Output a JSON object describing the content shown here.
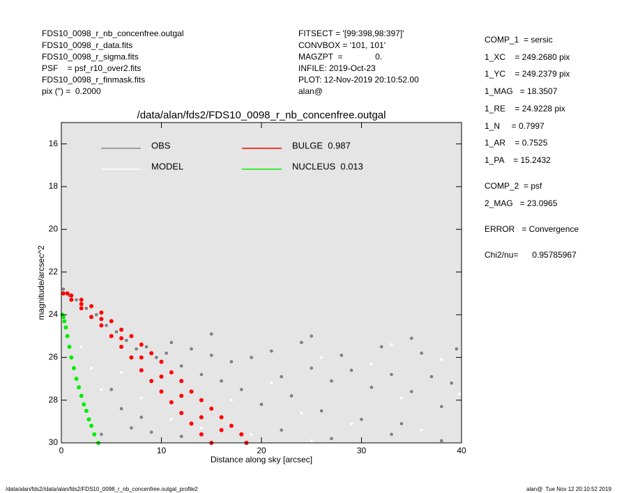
{
  "info": {
    "left": [
      "FDS10_0098_r_nb_concenfree.outgal",
      "FDS10_0098_r_data.fits",
      "FDS10_0098_r_sigma.fits",
      "PSF    = psf_r10_over2.fits",
      "FDS10_0098_r_finmask.fits",
      "pix (\") =  0.2000"
    ],
    "middle": [
      "FITSECT = '[99:398,98:397]'",
      "CONVBOX = '101, 101'",
      "MAGZPT  =              0.",
      "INFILE: 2019-Oct-23",
      "PLOT: 12-Nov-2019 20:10:52.00",
      "alan@"
    ],
    "right": [
      "COMP_1  = sersic",
      "1_XC    = 249.2680 pix",
      "1_YC    = 249.2379 pix",
      "1_MAG   = 18.3507",
      "1_RE    = 24.9228 pix",
      "1_N     = 0.7997",
      "1_AR    = 0.7525",
      "1_PA    = 15.2432",
      "COMP_2  = psf",
      "2_MAG   = 23.0965",
      "ERROR   = Convergence",
      "Chi2/nu=      0.95785967"
    ],
    "footer_left": "/data/alan/fds2//data/alan/fds2/FDS10_0098_r_nb_concenfree.outgal_profile2",
    "footer_right": "alan@  Tue Nov 12 20:10:52 2019"
  },
  "chart_data": {
    "type": "scatter",
    "title": "/data/alan/fds2/FDS10_0098_r_nb_concenfree.outgal",
    "xlabel": "Distance along sky [arcsec]",
    "ylabel": "magnitude/arcsec^2",
    "xlim": [
      0,
      40
    ],
    "xticks": [
      0,
      10,
      20,
      30,
      40
    ],
    "ylim": [
      30,
      15
    ],
    "yticks": [
      16,
      18,
      20,
      22,
      24,
      26,
      28,
      30
    ],
    "background": "#e5e5e5",
    "series": [
      {
        "name": "OBS",
        "color": "#888888",
        "x": [
          0.2,
          0.8,
          1.5,
          2.5,
          3.5,
          4.5,
          5.5,
          6.5,
          7.5,
          8.5,
          9.5,
          10.5,
          11,
          12,
          13,
          14,
          15,
          16,
          17,
          18,
          19,
          20,
          21,
          22,
          23,
          24,
          25,
          26,
          27,
          28,
          29,
          30,
          31,
          32,
          33,
          34,
          35,
          36,
          37,
          38,
          39,
          39.5,
          5,
          6,
          7,
          4,
          8,
          9,
          12,
          22,
          27,
          33,
          38,
          15,
          25,
          35
        ],
        "values": [
          22.8,
          23.1,
          23.3,
          23.7,
          24.0,
          24.5,
          24.8,
          25.2,
          25.6,
          25.5,
          26.0,
          25.8,
          25.3,
          26.4,
          25.6,
          26.8,
          25.9,
          27.1,
          26.2,
          27.5,
          26.0,
          28.2,
          25.7,
          26.9,
          27.8,
          25.3,
          26.5,
          28.5,
          27.1,
          25.9,
          26.6,
          28.9,
          27.4,
          25.5,
          26.8,
          29.1,
          27.6,
          25.8,
          26.9,
          28.3,
          27.2,
          25.6,
          27.5,
          28.4,
          29.3,
          29.6,
          28.8,
          29.5,
          29.7,
          29.4,
          29.8,
          29.6,
          29.9,
          24.9,
          25.0,
          25.1
        ]
      },
      {
        "name": "MODEL",
        "color": "#ffffff",
        "x": [
          2,
          3,
          4,
          6,
          8,
          11,
          14,
          17,
          19,
          21,
          24,
          26,
          29,
          31,
          34,
          36,
          38,
          39.8,
          25,
          33
        ],
        "values": [
          25.5,
          26.5,
          27.5,
          26.7,
          27.9,
          28.9,
          29.3,
          28.0,
          29.6,
          27.2,
          28.6,
          26.0,
          29.1,
          26.3,
          27.9,
          29.4,
          26.1,
          27.7,
          29.9,
          25.4
        ]
      },
      {
        "name": "BULGE  0.987",
        "color": "#ff0000",
        "x": [
          0.2,
          0.6,
          1,
          2,
          3,
          4,
          5,
          6,
          7,
          8,
          9,
          10,
          11,
          12,
          13,
          14,
          15,
          16,
          17,
          18,
          18.5,
          1,
          2,
          3,
          4,
          5,
          6,
          7,
          8,
          9,
          10,
          11,
          12,
          13,
          14,
          15,
          2,
          4,
          6,
          8,
          10,
          12,
          14,
          16
        ],
        "values": [
          23.0,
          23.0,
          23.1,
          23.3,
          23.6,
          23.9,
          24.3,
          24.7,
          25.0,
          25.4,
          25.8,
          26.2,
          26.7,
          27.1,
          27.6,
          28.0,
          28.4,
          28.8,
          29.2,
          29.6,
          30.0,
          23.3,
          23.7,
          24.1,
          24.5,
          25.0,
          25.5,
          26.0,
          26.6,
          27.1,
          27.6,
          28.1,
          28.6,
          29.1,
          29.6,
          30.0,
          23.5,
          24.2,
          25.1,
          26.0,
          26.9,
          27.8,
          28.8,
          29.4
        ]
      },
      {
        "name": "NUCLEUS  0.013",
        "color": "#00ee00",
        "x": [
          0.1,
          0.2,
          0.3,
          0.45,
          0.6,
          0.8,
          1,
          1.25,
          1.5,
          1.75,
          2,
          2.25,
          2.5,
          2.75,
          3,
          3.3,
          3.7
        ],
        "values": [
          24.0,
          24.1,
          24.3,
          24.6,
          25.0,
          25.5,
          26.0,
          26.5,
          27.0,
          27.4,
          27.8,
          28.2,
          28.5,
          28.9,
          29.2,
          29.6,
          30.0
        ]
      }
    ]
  }
}
